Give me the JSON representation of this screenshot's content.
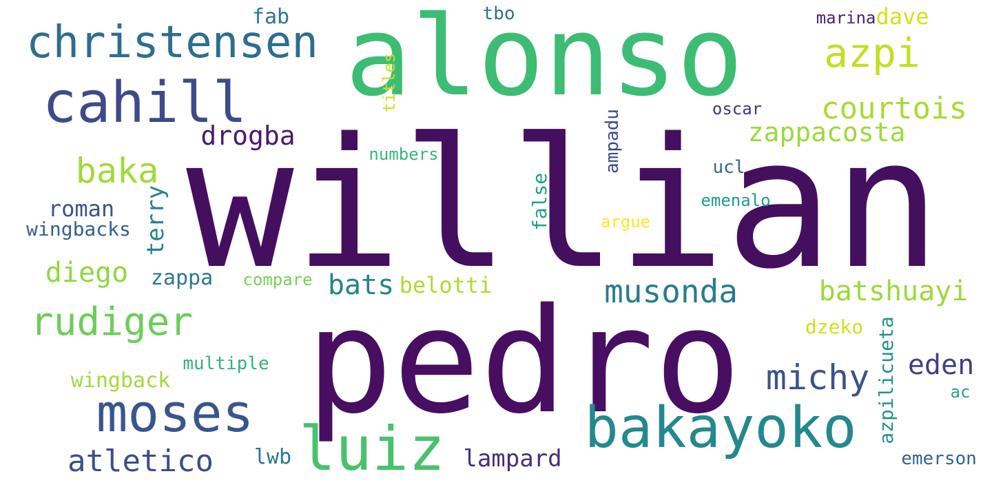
{
  "words": {
    "willian": {
      "text": "willian",
      "color": "#440f5f"
    },
    "pedro": {
      "text": "pedro",
      "color": "#470e61"
    },
    "alonso": {
      "text": "alonso",
      "color": "#3dbc74"
    },
    "christensen": {
      "text": "christensen",
      "color": "#2f6d8e"
    },
    "cahill": {
      "text": "cahill",
      "color": "#3e4a89"
    },
    "moses": {
      "text": "moses",
      "color": "#39568c"
    },
    "luiz": {
      "text": "luiz",
      "color": "#4ac16d"
    },
    "bakayoko": {
      "text": "bakayoko",
      "color": "#23898e"
    },
    "azpi": {
      "text": "azpi",
      "color": "#c2df23"
    },
    "courtois": {
      "text": "courtois",
      "color": "#a8db34"
    },
    "zappacosta": {
      "text": "zappacosta",
      "color": "#9dd93b"
    },
    "dave": {
      "text": "dave",
      "color": "#d2e21b"
    },
    "marina": {
      "text": "marina",
      "color": "#482475"
    },
    "fab": {
      "text": "fab",
      "color": "#2a788e"
    },
    "tbo": {
      "text": "tbo",
      "color": "#2c728e"
    },
    "titles": {
      "text": "titles",
      "color": "#c8e020"
    },
    "oscar": {
      "text": "oscar",
      "color": "#46327e"
    },
    "drogba": {
      "text": "drogba",
      "color": "#481a6c"
    },
    "baka": {
      "text": "baka",
      "color": "#a0da39"
    },
    "terry": {
      "text": "terry",
      "color": "#25838e"
    },
    "roman": {
      "text": "roman",
      "color": "#3b528b"
    },
    "wingbacks": {
      "text": "wingbacks",
      "color": "#355f8d"
    },
    "diego": {
      "text": "diego",
      "color": "#90d743"
    },
    "zappa": {
      "text": "zappa",
      "color": "#2a788e"
    },
    "compare": {
      "text": "compare",
      "color": "#7ad151"
    },
    "bats": {
      "text": "bats",
      "color": "#26828e"
    },
    "belotti": {
      "text": "belotti",
      "color": "#addc30"
    },
    "numbers": {
      "text": "numbers",
      "color": "#35b779"
    },
    "ampadu": {
      "text": "ampadu",
      "color": "#3e4989"
    },
    "false": {
      "text": "false",
      "color": "#1fa188"
    },
    "argue": {
      "text": "argue",
      "color": "#fde725"
    },
    "ucl": {
      "text": "ucl",
      "color": "#31688e"
    },
    "emenalo": {
      "text": "emenalo",
      "color": "#1f9e89"
    },
    "musonda": {
      "text": "musonda",
      "color": "#287c8e"
    },
    "batshuayi": {
      "text": "batshuayi",
      "color": "#9bd93c"
    },
    "rudiger": {
      "text": "rudiger",
      "color": "#6ccd5a"
    },
    "dzeko": {
      "text": "dzeko",
      "color": "#d0e11c"
    },
    "michy": {
      "text": "michy",
      "color": "#3b528b"
    },
    "eden": {
      "text": "eden",
      "color": "#433e85"
    },
    "azpilicueta": {
      "text": "azpilicueta",
      "color": "#21918c"
    },
    "multiple": {
      "text": "multiple",
      "color": "#2fb47c"
    },
    "wingback": {
      "text": "wingback",
      "color": "#a2da37"
    },
    "ac": {
      "text": "ac",
      "color": "#20a386"
    },
    "atletico": {
      "text": "atletico",
      "color": "#3e4c8a"
    },
    "lwb": {
      "text": "lwb",
      "color": "#2a768e"
    },
    "lampard": {
      "text": "lampard",
      "color": "#472d7b"
    },
    "emerson": {
      "text": "emerson",
      "color": "#33638d"
    }
  }
}
